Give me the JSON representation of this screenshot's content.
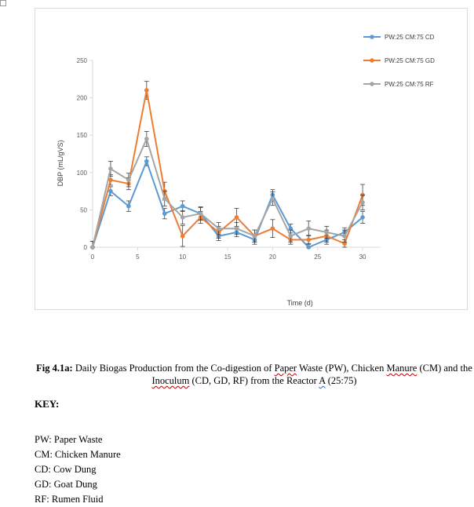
{
  "caption": {
    "label": "Fig 4.1a:",
    "part1": " Daily Biogas Production from the Co-digestion of ",
    "w_paper": "Paper",
    "part2": " Waste (PW), Chicken ",
    "w_manure": "Manure",
    "part3": " (CM) and the ",
    "w_inoculum": "Inoculum",
    "part4": " (CD, GD, RF) from the Reactor ",
    "w_a": "A",
    "part5": " (25:75)"
  },
  "key": {
    "heading": "KEY:",
    "items": [
      "PW: Paper Waste",
      "CM: Chicken Manure",
      "CD: Cow Dung",
      "GD: Goat Dung",
      "RF: Rumen Fluid"
    ]
  },
  "chart_data": {
    "type": "line",
    "title": "",
    "xlabel": "Time (d)",
    "ylabel": "DBP (mL/gVS)",
    "xlim": [
      0,
      32
    ],
    "ylim": [
      0,
      250
    ],
    "xticks": [
      0,
      5,
      10,
      15,
      20,
      25,
      30
    ],
    "yticks": [
      0,
      50,
      100,
      150,
      200,
      250
    ],
    "legend_position": "top-right",
    "x": [
      0,
      2,
      4,
      6,
      8,
      10,
      12,
      14,
      16,
      18,
      20,
      22,
      24,
      26,
      28,
      30
    ],
    "series": [
      {
        "name": "PW:25 CM:75 CD",
        "color": "#5b9bd5",
        "values": [
          0,
          75,
          55,
          115,
          45,
          55,
          45,
          15,
          20,
          10,
          70,
          25,
          0,
          10,
          20,
          40
        ],
        "errors": [
          8,
          6,
          7,
          6,
          7,
          7,
          8,
          6,
          6,
          6,
          7,
          6,
          5,
          6,
          6,
          8
        ]
      },
      {
        "name": "PW:25 CM:75 GD",
        "color": "#ed7d31",
        "values": [
          0,
          90,
          85,
          210,
          75,
          15,
          40,
          20,
          40,
          15,
          25,
          10,
          10,
          15,
          5,
          70
        ],
        "errors": [
          8,
          7,
          8,
          12,
          12,
          14,
          8,
          8,
          12,
          8,
          12,
          6,
          6,
          8,
          5,
          14
        ]
      },
      {
        "name": "PW:25 CM:75 RF",
        "color": "#a5a5a5",
        "values": [
          0,
          105,
          90,
          145,
          65,
          40,
          45,
          25,
          25,
          15,
          65,
          15,
          25,
          20,
          15,
          60
        ],
        "errors": [
          8,
          10,
          9,
          10,
          10,
          9,
          9,
          8,
          8,
          8,
          9,
          8,
          10,
          8,
          8,
          10
        ]
      }
    ]
  }
}
